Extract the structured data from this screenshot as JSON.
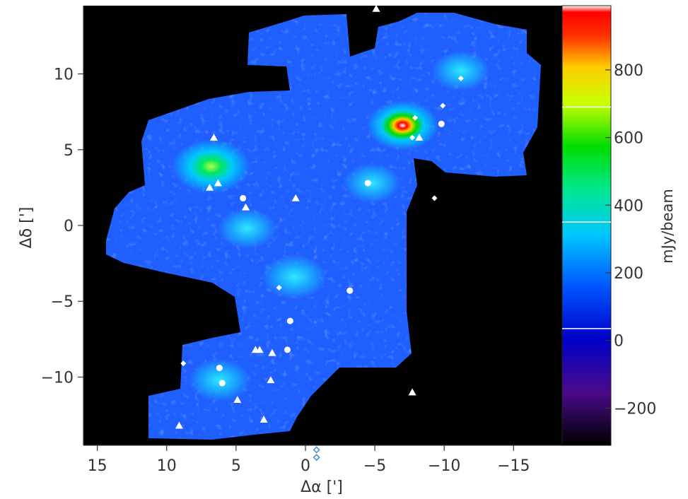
{
  "chart_data": {
    "type": "heatmap",
    "title": "",
    "xlabel": "Δα [']",
    "ylabel": "Δδ [']",
    "xlim": [
      16,
      -18.5
    ],
    "ylim": [
      -14.5,
      14.5
    ],
    "x_ticks": [
      15,
      10,
      5,
      0,
      -5,
      -10,
      -15
    ],
    "y_ticks": [
      -10,
      -5,
      0,
      5,
      10
    ],
    "x_tick_labels": [
      "15",
      "10",
      "5",
      "0",
      "−5",
      "−10",
      "−15"
    ],
    "y_tick_labels": [
      "−10",
      "−5",
      "0",
      "5",
      "10"
    ],
    "colorbar": {
      "label": "mJy/beam",
      "range": [
        -310,
        990
      ],
      "ticks": [
        -200,
        0,
        200,
        400,
        600,
        800
      ],
      "tick_labels": [
        "−200",
        "0",
        "200",
        "400",
        "600",
        "800"
      ],
      "white_lines": [
        35,
        350,
        690
      ]
    },
    "background": "#000000",
    "map_base_color": "#1f5fff",
    "emission_peaks": [
      {
        "x": -7.0,
        "y": 6.6,
        "peak": 990
      },
      {
        "x": 6.8,
        "y": 3.9,
        "peak": 420
      },
      {
        "x": 0.8,
        "y": -3.4,
        "peak": 230
      },
      {
        "x": 6.2,
        "y": -10.2,
        "peak": 200
      },
      {
        "x": 4.2,
        "y": -0.2,
        "peak": 160
      },
      {
        "x": -4.8,
        "y": 2.8,
        "peak": 140
      },
      {
        "x": -11.2,
        "y": 10.2,
        "peak": 150
      }
    ],
    "markers": {
      "circles": [
        {
          "x": 4.5,
          "y": 1.8
        },
        {
          "x": -4.5,
          "y": 2.8
        },
        {
          "x": -9.8,
          "y": 6.7
        },
        {
          "x": -3.2,
          "y": -4.3
        },
        {
          "x": 1.1,
          "y": -6.3
        },
        {
          "x": 1.3,
          "y": -8.2
        },
        {
          "x": 6.2,
          "y": -9.4
        },
        {
          "x": 6.0,
          "y": -10.4
        }
      ],
      "triangles": [
        {
          "x": -5.1,
          "y": 14.3
        },
        {
          "x": 6.6,
          "y": 5.8
        },
        {
          "x": 6.3,
          "y": 2.8
        },
        {
          "x": 6.9,
          "y": 2.5
        },
        {
          "x": 4.3,
          "y": 1.2
        },
        {
          "x": 0.7,
          "y": 1.8
        },
        {
          "x": -8.2,
          "y": 5.8
        },
        {
          "x": 3.6,
          "y": -8.2
        },
        {
          "x": 3.3,
          "y": -8.2
        },
        {
          "x": 2.4,
          "y": -8.4
        },
        {
          "x": 2.5,
          "y": -10.2
        },
        {
          "x": 4.9,
          "y": -11.5
        },
        {
          "x": 3.0,
          "y": -12.8
        },
        {
          "x": 9.1,
          "y": -13.2
        },
        {
          "x": -7.7,
          "y": -11.0
        }
      ],
      "diamonds": [
        {
          "x": -11.2,
          "y": 9.7
        },
        {
          "x": -9.9,
          "y": 7.9
        },
        {
          "x": -7.9,
          "y": 7.1
        },
        {
          "x": -7.7,
          "y": 5.8
        },
        {
          "x": -9.3,
          "y": 1.8
        },
        {
          "x": 1.9,
          "y": -4.1
        },
        {
          "x": 8.8,
          "y": -9.1
        }
      ],
      "open_diamonds": [
        {
          "x": -0.8,
          "y": -14.8
        },
        {
          "x": -0.8,
          "y": -15.3
        }
      ]
    }
  }
}
